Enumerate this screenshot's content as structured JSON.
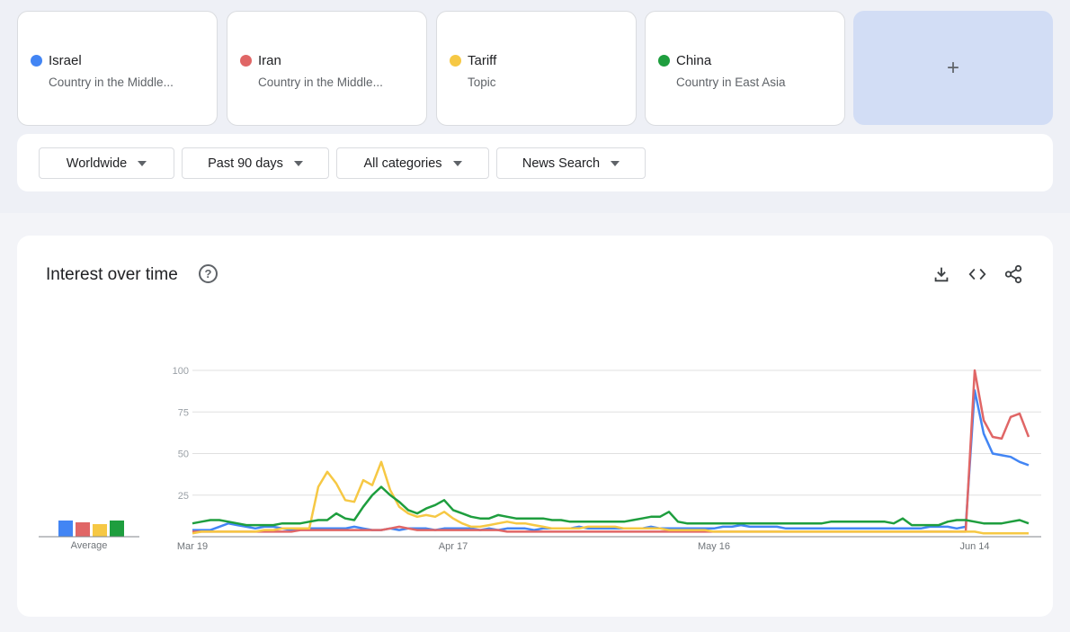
{
  "terms": [
    {
      "name": "Israel",
      "subtitle": "Country in the Middle...",
      "color": "#4285f4"
    },
    {
      "name": "Iran",
      "subtitle": "Country in the Middle...",
      "color": "#e06666"
    },
    {
      "name": "Tariff",
      "subtitle": "Topic",
      "color": "#f6c844"
    },
    {
      "name": "China",
      "subtitle": "Country in East Asia",
      "color": "#1e9e3e"
    }
  ],
  "add_label": "+",
  "filters": {
    "region": "Worldwide",
    "time": "Past 90 days",
    "category": "All categories",
    "search_type": "News Search"
  },
  "chart_panel": {
    "title": "Interest over time",
    "help_icon": "help-circle-icon",
    "tools": [
      "download-icon",
      "embed-code-icon",
      "share-icon"
    ],
    "average_label": "Average"
  },
  "chart_data": {
    "type": "line",
    "ylim": [
      0,
      100
    ],
    "yticks": [
      25,
      50,
      75,
      100
    ],
    "grid": true,
    "x_ticks": [
      {
        "index": 0,
        "label": "Mar 19"
      },
      {
        "index": 29,
        "label": "Apr 17"
      },
      {
        "index": 58,
        "label": "May 16"
      },
      {
        "index": 87,
        "label": "Jun 14"
      }
    ],
    "average": [
      9,
      8,
      7,
      9
    ],
    "series": [
      {
        "name": "Israel",
        "color": "#4285f4",
        "values": [
          4,
          4,
          4,
          6,
          8,
          7,
          6,
          5,
          6,
          6,
          5,
          4,
          5,
          5,
          5,
          5,
          5,
          5,
          6,
          5,
          4,
          4,
          5,
          4,
          5,
          5,
          5,
          4,
          5,
          5,
          5,
          5,
          4,
          5,
          4,
          5,
          5,
          5,
          4,
          5,
          5,
          5,
          5,
          6,
          5,
          5,
          5,
          5,
          5,
          5,
          5,
          6,
          5,
          5,
          5,
          5,
          5,
          5,
          5,
          6,
          6,
          7,
          6,
          6,
          6,
          6,
          5,
          5,
          5,
          5,
          5,
          5,
          5,
          5,
          5,
          5,
          5,
          5,
          5,
          5,
          5,
          5,
          6,
          6,
          6,
          5,
          6,
          88,
          62,
          50,
          49,
          48,
          45,
          43
        ]
      },
      {
        "name": "Iran",
        "color": "#e06666",
        "values": [
          3,
          3,
          3,
          3,
          3,
          3,
          3,
          3,
          3,
          3,
          3,
          3,
          4,
          4,
          4,
          4,
          4,
          4,
          4,
          4,
          4,
          4,
          5,
          6,
          5,
          4,
          4,
          4,
          4,
          4,
          4,
          4,
          4,
          4,
          4,
          3,
          3,
          3,
          3,
          3,
          3,
          3,
          3,
          3,
          3,
          3,
          3,
          3,
          3,
          3,
          3,
          3,
          3,
          3,
          3,
          3,
          3,
          3,
          3,
          3,
          3,
          3,
          3,
          3,
          3,
          3,
          3,
          3,
          3,
          3,
          3,
          3,
          3,
          3,
          3,
          3,
          3,
          3,
          3,
          3,
          3,
          3,
          3,
          3,
          3,
          3,
          3,
          100,
          70,
          60,
          59,
          72,
          74,
          60
        ]
      },
      {
        "name": "Tariff",
        "color": "#f6c844",
        "values": [
          2,
          3,
          3,
          3,
          3,
          3,
          3,
          3,
          4,
          4,
          5,
          5,
          5,
          5,
          30,
          39,
          32,
          22,
          21,
          34,
          31,
          45,
          28,
          18,
          14,
          12,
          13,
          12,
          15,
          11,
          8,
          6,
          6,
          7,
          8,
          9,
          8,
          8,
          7,
          6,
          5,
          5,
          5,
          5,
          6,
          6,
          6,
          6,
          5,
          5,
          5,
          5,
          5,
          4,
          4,
          4,
          4,
          4,
          3,
          3,
          3,
          3,
          3,
          3,
          3,
          3,
          3,
          3,
          3,
          3,
          3,
          3,
          3,
          3,
          3,
          3,
          3,
          3,
          3,
          3,
          3,
          3,
          3,
          3,
          3,
          3,
          3,
          3,
          2,
          2,
          2,
          2,
          2,
          2
        ]
      },
      {
        "name": "China",
        "color": "#1e9e3e",
        "values": [
          8,
          9,
          10,
          10,
          9,
          8,
          7,
          7,
          7,
          7,
          8,
          8,
          8,
          9,
          10,
          10,
          14,
          11,
          10,
          18,
          25,
          30,
          25,
          21,
          16,
          14,
          17,
          19,
          22,
          16,
          14,
          12,
          11,
          11,
          13,
          12,
          11,
          11,
          11,
          11,
          10,
          10,
          9,
          9,
          9,
          9,
          9,
          9,
          9,
          10,
          11,
          12,
          12,
          15,
          9,
          8,
          8,
          8,
          8,
          8,
          8,
          8,
          8,
          8,
          8,
          8,
          8,
          8,
          8,
          8,
          8,
          9,
          9,
          9,
          9,
          9,
          9,
          9,
          8,
          11,
          7,
          7,
          7,
          7,
          9,
          10,
          10,
          9,
          8,
          8,
          8,
          9,
          10,
          8
        ]
      }
    ]
  }
}
